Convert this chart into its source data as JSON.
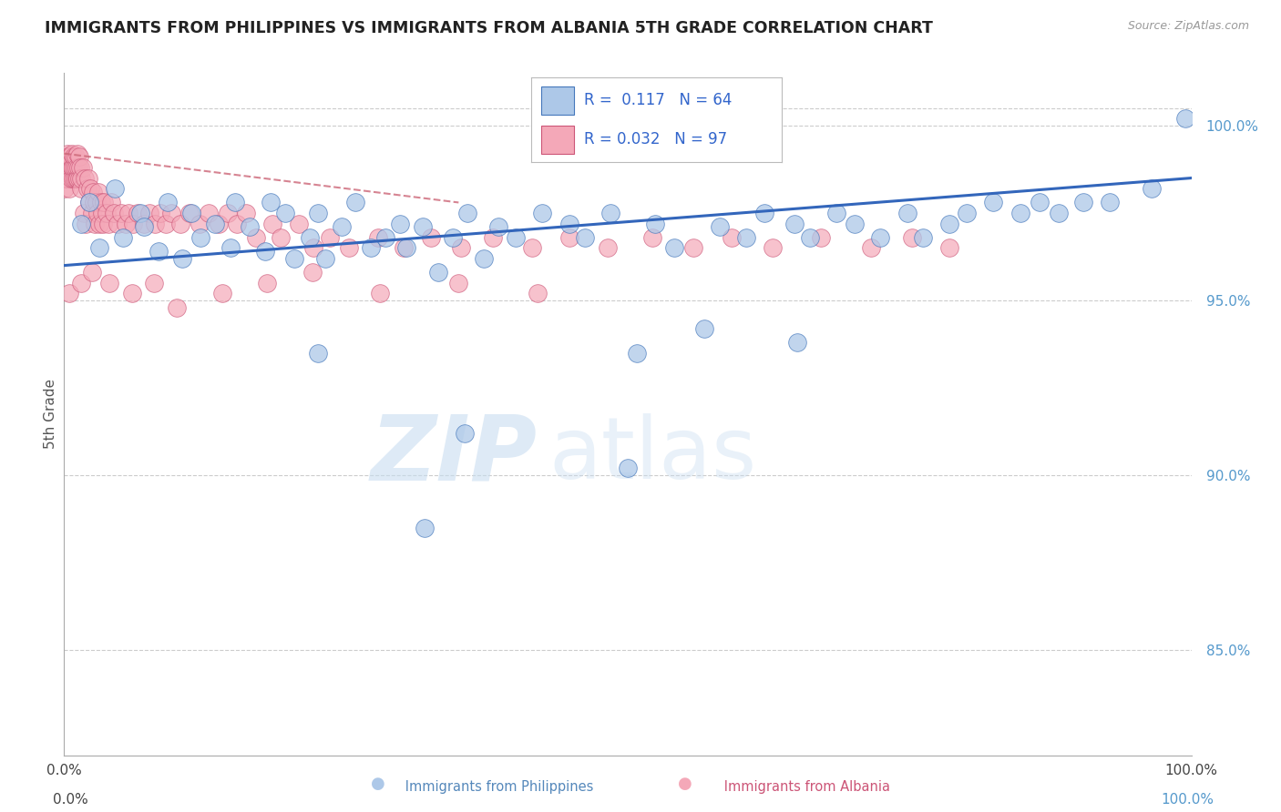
{
  "title": "IMMIGRANTS FROM PHILIPPINES VS IMMIGRANTS FROM ALBANIA 5TH GRADE CORRELATION CHART",
  "source_text": "Source: ZipAtlas.com",
  "ylabel": "5th Grade",
  "xmin": 0.0,
  "xmax": 100.0,
  "ymin": 82.0,
  "ymax": 101.5,
  "yticks": [
    85.0,
    90.0,
    95.0,
    100.0
  ],
  "legend_R_blue": "0.117",
  "legend_N_blue": "64",
  "legend_R_pink": "0.032",
  "legend_N_pink": "97",
  "blue_color": "#adc8e8",
  "pink_color": "#f4a8b8",
  "blue_edge_color": "#4477bb",
  "pink_edge_color": "#cc5577",
  "blue_line_color": "#3366bb",
  "pink_line_color": "#cc6677",
  "title_fontsize": 12.5,
  "watermark_ZIP": "ZIP",
  "watermark_atlas": "atlas",
  "blue_scatter_x": [
    1.5,
    2.2,
    3.1,
    4.5,
    5.2,
    6.8,
    7.1,
    8.4,
    9.2,
    10.5,
    11.3,
    12.1,
    13.4,
    14.8,
    15.2,
    16.5,
    17.8,
    18.3,
    19.6,
    20.4,
    21.8,
    22.5,
    23.2,
    24.6,
    25.8,
    27.2,
    28.5,
    29.8,
    30.4,
    31.8,
    33.2,
    34.5,
    35.8,
    37.2,
    38.5,
    40.1,
    42.4,
    44.8,
    46.2,
    48.5,
    50.8,
    52.4,
    54.1,
    56.8,
    58.2,
    60.5,
    62.1,
    64.8,
    66.2,
    68.5,
    70.1,
    72.4,
    74.8,
    76.2,
    78.5,
    80.1,
    82.4,
    84.8,
    86.5,
    88.2,
    90.4,
    92.8,
    96.5,
    99.5
  ],
  "blue_scatter_y": [
    97.2,
    97.8,
    96.5,
    98.2,
    96.8,
    97.5,
    97.1,
    96.4,
    97.8,
    96.2,
    97.5,
    96.8,
    97.2,
    96.5,
    97.8,
    97.1,
    96.4,
    97.8,
    97.5,
    96.2,
    96.8,
    97.5,
    96.2,
    97.1,
    97.8,
    96.5,
    96.8,
    97.2,
    96.5,
    97.1,
    95.8,
    96.8,
    97.5,
    96.2,
    97.1,
    96.8,
    97.5,
    97.2,
    96.8,
    97.5,
    93.5,
    97.2,
    96.5,
    94.2,
    97.1,
    96.8,
    97.5,
    97.2,
    96.8,
    97.5,
    97.2,
    96.8,
    97.5,
    96.8,
    97.2,
    97.5,
    97.8,
    97.5,
    97.8,
    97.5,
    97.8,
    97.8,
    98.2,
    100.2
  ],
  "blue_outlier1_x": 22.5,
  "blue_outlier1_y": 93.5,
  "blue_outlier2_x": 35.5,
  "blue_outlier2_y": 91.2,
  "blue_outlier3_x": 50.0,
  "blue_outlier3_y": 90.2,
  "blue_outlier4_x": 32.0,
  "blue_outlier4_y": 88.5,
  "blue_outlier5_x": 65.0,
  "blue_outlier5_y": 93.8,
  "pink_scatter_x": [
    0.08,
    0.12,
    0.18,
    0.22,
    0.28,
    0.32,
    0.38,
    0.42,
    0.48,
    0.52,
    0.58,
    0.62,
    0.68,
    0.72,
    0.78,
    0.82,
    0.88,
    0.92,
    0.98,
    1.02,
    1.08,
    1.12,
    1.18,
    1.22,
    1.28,
    1.32,
    1.38,
    1.42,
    1.48,
    1.55,
    1.65,
    1.75,
    1.85,
    1.95,
    2.05,
    2.15,
    2.25,
    2.35,
    2.45,
    2.55,
    2.65,
    2.75,
    2.85,
    2.95,
    3.05,
    3.15,
    3.25,
    3.35,
    3.45,
    3.55,
    3.75,
    3.95,
    4.15,
    4.45,
    4.75,
    5.05,
    5.45,
    5.75,
    6.15,
    6.55,
    7.05,
    7.55,
    8.05,
    8.55,
    9.05,
    9.55,
    10.35,
    11.15,
    12.05,
    12.85,
    13.75,
    14.55,
    15.35,
    16.15,
    17.05,
    18.45,
    19.25,
    20.85,
    22.15,
    23.55,
    25.25,
    27.85,
    30.15,
    32.55,
    35.25,
    38.05,
    41.55,
    44.85,
    48.25,
    52.15,
    55.85,
    59.25,
    62.85,
    67.15,
    71.55,
    75.25,
    78.5
  ],
  "pink_scatter_y": [
    98.2,
    98.5,
    99.1,
    98.8,
    99.2,
    98.5,
    98.8,
    99.1,
    98.2,
    98.8,
    99.1,
    98.5,
    98.8,
    99.2,
    98.5,
    98.8,
    99.1,
    98.5,
    98.8,
    99.1,
    98.5,
    98.8,
    99.2,
    98.5,
    98.8,
    99.1,
    98.5,
    98.8,
    98.2,
    98.5,
    98.8,
    97.5,
    98.5,
    97.2,
    98.2,
    98.5,
    97.8,
    98.2,
    97.5,
    98.1,
    97.8,
    97.2,
    97.8,
    97.5,
    98.1,
    97.2,
    97.8,
    97.5,
    97.2,
    97.8,
    97.5,
    97.2,
    97.8,
    97.5,
    97.2,
    97.5,
    97.2,
    97.5,
    97.2,
    97.5,
    97.2,
    97.5,
    97.2,
    97.5,
    97.2,
    97.5,
    97.2,
    97.5,
    97.2,
    97.5,
    97.2,
    97.5,
    97.2,
    97.5,
    96.8,
    97.2,
    96.8,
    97.2,
    96.5,
    96.8,
    96.5,
    96.8,
    96.5,
    96.8,
    96.5,
    96.8,
    96.5,
    96.8,
    96.5,
    96.8,
    96.5,
    96.8,
    96.5,
    96.8,
    96.5,
    96.8,
    96.5
  ],
  "pink_extra_low_x": [
    0.5,
    1.5,
    2.5,
    4.0,
    6.0,
    8.0,
    10.0,
    14.0,
    18.0,
    22.0,
    28.0,
    35.0,
    42.0
  ],
  "pink_extra_low_y": [
    95.2,
    95.5,
    95.8,
    95.5,
    95.2,
    95.5,
    94.8,
    95.2,
    95.5,
    95.8,
    95.2,
    95.5,
    95.2
  ],
  "blue_line_x0": 0.0,
  "blue_line_y0": 96.0,
  "blue_line_x1": 100.0,
  "blue_line_y1": 98.5,
  "pink_line_x0": 0.0,
  "pink_line_y0": 99.2,
  "pink_line_x1": 35.0,
  "pink_line_y1": 97.8
}
